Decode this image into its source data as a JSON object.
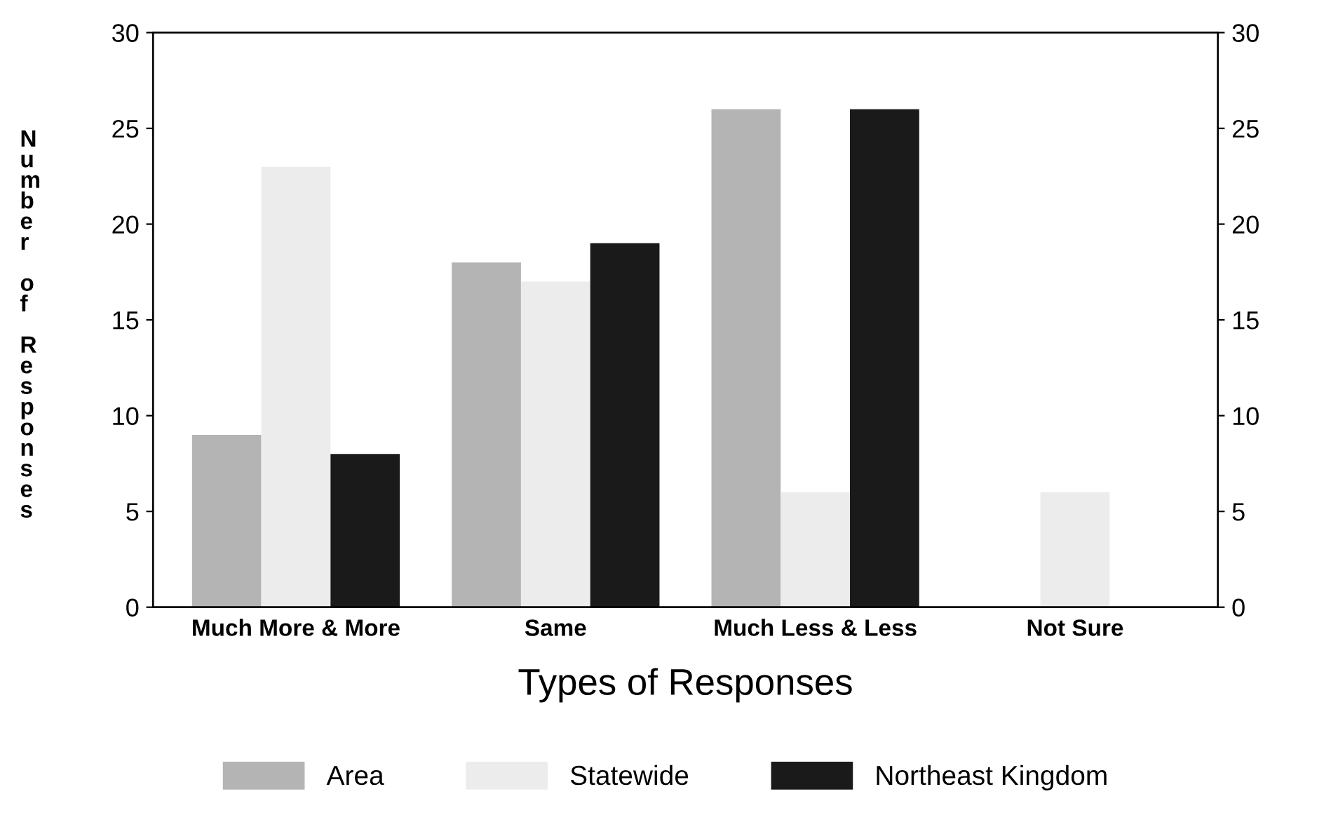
{
  "chart_data": {
    "type": "bar",
    "xlabel": "Types of Responses",
    "ylabel": "Number of Responses",
    "categories": [
      "Much More & More",
      "Same",
      "Much Less & Less",
      "Not Sure"
    ],
    "series": [
      {
        "name": "Area",
        "color": "#b4b4b4",
        "values": [
          9,
          18,
          26,
          null
        ]
      },
      {
        "name": "Statewide",
        "color": "#ececec",
        "values": [
          23,
          17,
          6,
          6
        ]
      },
      {
        "name": "Northeast Kingdom",
        "color": "#1a1a1a",
        "values": [
          8,
          19,
          26,
          null
        ]
      }
    ],
    "ylim": [
      0,
      30
    ],
    "yticks": [
      0,
      5,
      10,
      15,
      20,
      25,
      30
    ],
    "y2lim": [
      0,
      30
    ],
    "y2ticks": [
      0,
      5,
      10,
      15,
      20,
      25,
      30
    ],
    "grid": false,
    "legend": "bottom"
  }
}
